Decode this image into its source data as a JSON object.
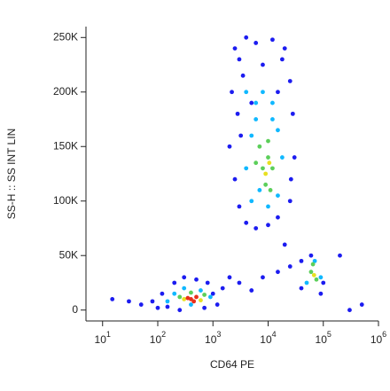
{
  "chart_data": {
    "type": "scatter",
    "x_label": "CD64 PE",
    "y_label": "SS-H :: SS INT LIN",
    "log_x": true,
    "xlim": [
      5,
      1000000
    ],
    "xticks": [
      {
        "value": 10,
        "label": "10",
        "exponent": "1"
      },
      {
        "value": 100,
        "label": "10",
        "exponent": "2"
      },
      {
        "value": 1000,
        "label": "10",
        "exponent": "3"
      },
      {
        "value": 10000,
        "label": "10",
        "exponent": "4"
      },
      {
        "value": 100000,
        "label": "10",
        "exponent": "5"
      },
      {
        "value": 1000000,
        "label": "10",
        "exponent": "6"
      }
    ],
    "ylim": [
      -10000,
      260000
    ],
    "yticks": [
      0,
      {
        "value": 50000,
        "label": "50K"
      },
      {
        "value": 100000,
        "label": "100K"
      },
      {
        "value": 150000,
        "label": "150K"
      },
      {
        "value": 200000,
        "label": "200K"
      },
      {
        "value": 250000,
        "label": "250K"
      }
    ],
    "series": [
      {
        "color": "#1c1cf0",
        "x": [
          2500,
          3000,
          4000,
          6000,
          12000,
          20000,
          2200,
          2800,
          2000,
          2500,
          3000,
          4000,
          6000,
          10000,
          15000,
          25000,
          30000,
          28000,
          25000,
          18000,
          3500,
          8000,
          5000,
          15000,
          3200,
          26000,
          1500,
          2000,
          3000,
          5000,
          8000,
          15000,
          25000,
          40000,
          60000,
          100000,
          90000,
          40000,
          80,
          120,
          150,
          200,
          300,
          500,
          800,
          1000,
          1200,
          700,
          250,
          100,
          50,
          30,
          500000,
          20000,
          200000,
          300000,
          15
        ],
        "values": [
          240000,
          230000,
          250000,
          245000,
          248000,
          240000,
          200000,
          180000,
          150000,
          120000,
          95000,
          80000,
          75000,
          78000,
          85000,
          100000,
          140000,
          180000,
          210000,
          230000,
          215000,
          225000,
          190000,
          200000,
          160000,
          120000,
          20000,
          30000,
          25000,
          18000,
          30000,
          35000,
          40000,
          45000,
          50000,
          25000,
          15000,
          20000,
          8000,
          15000,
          3000,
          25000,
          30000,
          28000,
          25000,
          15000,
          5000,
          2000,
          0,
          2000,
          5000,
          8000,
          5000,
          60000,
          50000,
          0,
          10000
        ]
      },
      {
        "color": "#10b8ff",
        "x": [
          4000,
          6000,
          8000,
          12000,
          5000,
          15000,
          4000,
          18000,
          5000,
          10000,
          15000,
          7000,
          6000,
          12000,
          200,
          300,
          600,
          900,
          400,
          150,
          50000,
          70000,
          90000
        ],
        "values": [
          200000,
          190000,
          200000,
          190000,
          160000,
          165000,
          130000,
          140000,
          100000,
          95000,
          105000,
          110000,
          175000,
          175000,
          15000,
          20000,
          18000,
          12000,
          5000,
          8000,
          25000,
          45000,
          30000
        ]
      },
      {
        "color": "#5ccf5a",
        "x": [
          7000,
          10000,
          8000,
          12000,
          6000,
          9000,
          11000,
          10000,
          250,
          700,
          400,
          60000,
          75000,
          65000
        ],
        "values": [
          150000,
          155000,
          130000,
          130000,
          135000,
          115000,
          110000,
          140000,
          12000,
          14000,
          16000,
          35000,
          28000,
          42000
        ]
      },
      {
        "color": "#e8e020",
        "x": [
          9000,
          10500,
          300,
          600,
          68000
        ],
        "values": [
          125000,
          135000,
          10000,
          9000,
          32000
        ]
      },
      {
        "color": "#e8301c",
        "x": [
          400,
          500,
          450,
          350
        ],
        "values": [
          10000,
          12000,
          8000,
          11000
        ]
      }
    ]
  }
}
